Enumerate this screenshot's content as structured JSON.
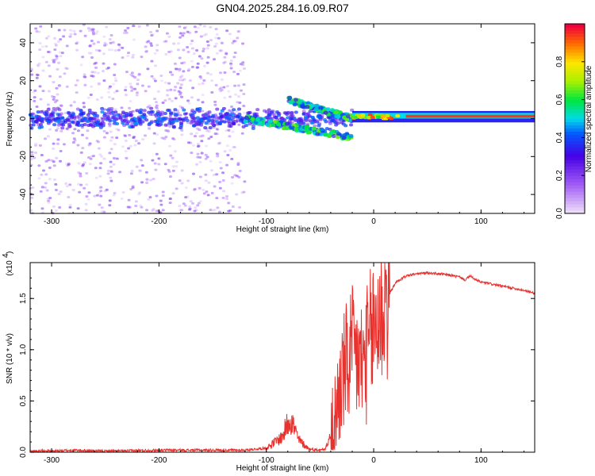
{
  "title": "GN04.2025.284.16.09.R07",
  "colors": {
    "snr_line": "#e8322e",
    "frame": "#000000",
    "background": "#ffffff"
  },
  "chart_data": [
    {
      "type": "heatmap",
      "name": "spectrogram",
      "xlabel": "Height of straight line (km)",
      "ylabel": "Frequency (Hz)",
      "xlim": [
        -320,
        150
      ],
      "ylim": [
        -50,
        50
      ],
      "x_ticks": [
        -300,
        -200,
        -100,
        0,
        100
      ],
      "y_ticks": [
        -40,
        -20,
        0,
        20,
        40
      ],
      "features": [
        {
          "label": "broadband noise",
          "x_range": [
            -320,
            -120
          ],
          "freq_range": [
            -50,
            50
          ],
          "level": 0.15
        },
        {
          "label": "central band",
          "x_range": [
            -320,
            -20
          ],
          "freq_range": [
            -6,
            6
          ],
          "level": 0.3
        },
        {
          "label": "upper branch",
          "x_range": [
            -80,
            -20
          ],
          "freq_center_from": 10,
          "freq_center_to": 0,
          "level": 0.45
        },
        {
          "label": "lower branch",
          "x_range": [
            -120,
            -20
          ],
          "freq_center_from": 0,
          "freq_center_to": -10,
          "level": 0.45
        },
        {
          "label": "steady tone",
          "x_range": [
            -20,
            150
          ],
          "freq_range": [
            0,
            2
          ],
          "level": 0.95
        }
      ],
      "colorbar": {
        "label": "Normalized spectral amplitude",
        "range": [
          0,
          1
        ],
        "ticks": [
          {
            "value": 0.0,
            "label": "0.0"
          },
          {
            "value": 0.2,
            "label": "0.2"
          },
          {
            "value": 0.4,
            "label": "0.4"
          },
          {
            "value": 0.6,
            "label": "0.6"
          },
          {
            "value": 0.8,
            "label": "0.8"
          }
        ]
      }
    },
    {
      "type": "line",
      "name": "snr",
      "xlabel": "Height of straight line (km)",
      "ylabel": "SNR (10 * v/v)",
      "y_multiplier_label": "(x10",
      "y_multiplier_exp": "4",
      "xlim": [
        -320,
        150
      ],
      "ylim": [
        0,
        1.85
      ],
      "x_ticks": [
        -300,
        -200,
        -100,
        0,
        100
      ],
      "y_ticks": [
        {
          "value": 0.0,
          "label": "0.0"
        },
        {
          "value": 0.5,
          "label": "0.5"
        },
        {
          "value": 1.0,
          "label": "1.0"
        },
        {
          "value": 1.5,
          "label": "1.5"
        }
      ],
      "series": [
        {
          "name": "SNR",
          "x": [
            -320,
            -300,
            -280,
            -250,
            -200,
            -170,
            -150,
            -120,
            -100,
            -85,
            -78,
            -70,
            -60,
            -50,
            -45,
            -40,
            -35,
            -30,
            -25,
            -20,
            -15,
            -10,
            -5,
            0,
            5,
            10,
            15,
            20,
            30,
            40,
            50,
            60,
            70,
            80,
            85,
            90,
            95,
            100,
            110,
            120,
            130,
            140,
            150
          ],
          "y": [
            0.01,
            0.01,
            0.02,
            0.01,
            0.02,
            0.02,
            0.02,
            0.02,
            0.04,
            0.15,
            0.35,
            0.12,
            0.03,
            0.02,
            0.04,
            0.15,
            0.4,
            0.7,
            0.85,
            0.95,
            0.9,
            0.85,
            1.0,
            1.2,
            1.35,
            1.45,
            1.55,
            1.65,
            1.72,
            1.74,
            1.75,
            1.74,
            1.73,
            1.71,
            1.68,
            1.72,
            1.68,
            1.66,
            1.64,
            1.62,
            1.6,
            1.58,
            1.55
          ]
        }
      ]
    }
  ]
}
